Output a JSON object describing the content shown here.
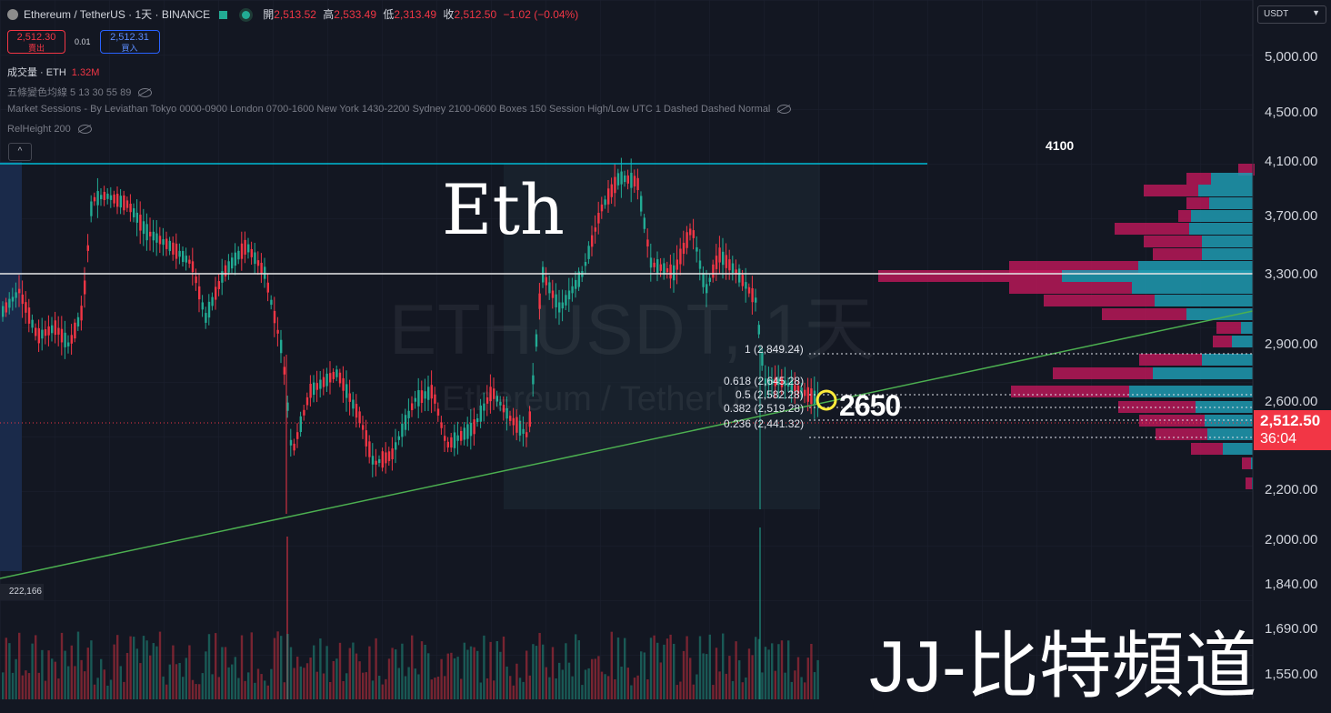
{
  "header": {
    "symbol_title": "Ethereum / TetherUS · 1天 · BINANCE",
    "ohlc": {
      "open_label": "開",
      "open": "2,513.52",
      "high_label": "高",
      "high": "2,533.49",
      "low_label": "低",
      "low": "2,313.49",
      "close_label": "收",
      "close": "2,512.50",
      "change": "−1.02 (−0.04%)"
    }
  },
  "trade": {
    "sell_price": "2,512.30",
    "sell_label": "賣出",
    "spread": "0.01",
    "buy_price": "2,512.31",
    "buy_label": "買入"
  },
  "indicators": {
    "volume_label": "成交量 · ETH",
    "volume_value": "1.32M",
    "ma": "五條變色均線 5 13 30 55 89",
    "sessions": "Market Sessions - By Leviathan Tokyo 0000-0900 London 0700-1600 New York 1430-2200 Sydney 2100-0600 Boxes 150 Session High/Low UTC 1 Dashed Dashed Normal",
    "relheight": "RelHeight 200",
    "collapse_symbol": "^"
  },
  "price_axis": {
    "currency": "USDT",
    "ticks": [
      "5,000.00",
      "4,500.00",
      "4,100.00",
      "3,700.00",
      "3,300.00",
      "2,900.00",
      "2,600.00",
      "2,200.00",
      "2,000.00",
      "1,840.00",
      "1,690.00",
      "1,550.00"
    ],
    "last_price": "2,512.50",
    "countdown": "36:04"
  },
  "watermark": {
    "line1": "ETHUSDT, 1天",
    "line2": "Ethereum / TetherUS"
  },
  "annotations": {
    "eth_text": "Eth",
    "level_4100": "4100",
    "target_2650": "2650",
    "brand": "JJ-比特頻道",
    "left_label": "222,166"
  },
  "fibonacci": [
    {
      "ratio": "1",
      "price": "2,849.24"
    },
    {
      "ratio": "0.618",
      "price": "2,645.28"
    },
    {
      "ratio": "0.5",
      "price": "2,582.28"
    },
    {
      "ratio": "0.382",
      "price": "2,519.28"
    },
    {
      "ratio": "0.236",
      "price": "2,441.32"
    }
  ],
  "colors": {
    "up": "#22ab94",
    "down": "#f23645",
    "teal_line": "#00bcd4",
    "trend": "#4caf50",
    "bg": "#131722"
  }
}
